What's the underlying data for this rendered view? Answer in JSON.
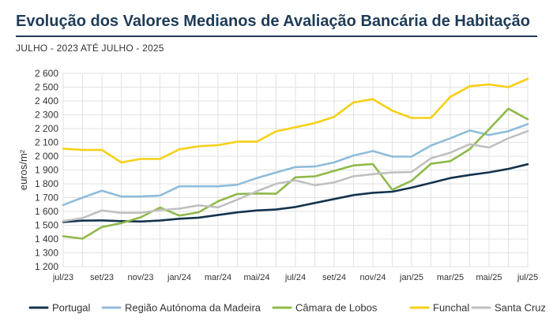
{
  "header": {
    "title": "Evolução dos Valores Medianos de Avaliação Bancária de Habitação",
    "subtitle": "JULHO - 2023 ATÉ JULHO - 2025"
  },
  "chart_data": {
    "type": "line",
    "ylabel": "euros/m²",
    "ylim": [
      1200,
      2600
    ],
    "yticks": [
      1200,
      1300,
      1400,
      1500,
      1600,
      1700,
      1800,
      1900,
      2000,
      2100,
      2200,
      2300,
      2400,
      2500,
      2600
    ],
    "ytick_labels": [
      "1 200",
      "1 300",
      "1 400",
      "1 500",
      "1 600",
      "1 700",
      "1 800",
      "1 900",
      "2 000",
      "2 100",
      "2 200",
      "2 300",
      "2 400",
      "2 500",
      "2 600"
    ],
    "categories": [
      "jul/23",
      "ago/23",
      "set/23",
      "out/23",
      "nov/23",
      "dez/23",
      "jan/24",
      "fev/24",
      "mar/24",
      "abr/24",
      "mai/24",
      "jun/24",
      "jul/24",
      "ago/24",
      "set/24",
      "out/24",
      "nov/24",
      "dez/24",
      "jan/25",
      "fev/25",
      "mar/25",
      "abr/25",
      "mai/25",
      "jun/25",
      "jul/25"
    ],
    "xtick_labels": [
      "jul/23",
      "set/23",
      "nov/23",
      "jan/24",
      "mar/24",
      "mai/24",
      "jul/24",
      "set/24",
      "nov/24",
      "jan/25",
      "mar/25",
      "mai/25",
      "jul/25"
    ],
    "xtick_indices": [
      0,
      2,
      4,
      6,
      8,
      10,
      12,
      14,
      16,
      18,
      20,
      22,
      24
    ],
    "grid": true,
    "legend_position": "bottom",
    "series": [
      {
        "name": "Portugal",
        "color": "#14334d",
        "values": [
          1523,
          1533,
          1535,
          1530,
          1527,
          1534,
          1547,
          1555,
          1574,
          1593,
          1607,
          1614,
          1632,
          1661,
          1690,
          1718,
          1735,
          1743,
          1772,
          1806,
          1842,
          1864,
          1883,
          1908,
          1942
        ]
      },
      {
        "name": "Região Autónoma da Madeira",
        "color": "#8fbcda",
        "values": [
          1647,
          1700,
          1750,
          1708,
          1708,
          1715,
          1782,
          1782,
          1782,
          1793,
          1842,
          1882,
          1921,
          1925,
          1955,
          2005,
          2037,
          1997,
          1997,
          2077,
          2130,
          2186,
          2154,
          2181,
          2232
        ]
      },
      {
        "name": "Câmara de Lobos",
        "color": "#8fb94a",
        "values": [
          1420,
          1403,
          1487,
          1515,
          1557,
          1628,
          1570,
          1594,
          1673,
          1726,
          1730,
          1728,
          1847,
          1854,
          1894,
          1933,
          1943,
          1757,
          1822,
          1945,
          1964,
          2051,
          2195,
          2344,
          2268
        ]
      },
      {
        "name": "Funchal",
        "color": "#f7cf16",
        "values": [
          2055,
          2045,
          2045,
          1955,
          1980,
          1980,
          2050,
          2072,
          2080,
          2105,
          2105,
          2180,
          2210,
          2240,
          2285,
          2390,
          2413,
          2330,
          2277,
          2277,
          2430,
          2507,
          2520,
          2500,
          2560
        ]
      },
      {
        "name": "Santa Cruz",
        "color": "#c0c0c0",
        "values": [
          1530,
          1552,
          1607,
          1590,
          1590,
          1610,
          1620,
          1644,
          1630,
          1685,
          1745,
          1800,
          1825,
          1790,
          1810,
          1855,
          1870,
          1882,
          1885,
          1985,
          2025,
          2087,
          2063,
          2130,
          2182
        ]
      }
    ]
  }
}
